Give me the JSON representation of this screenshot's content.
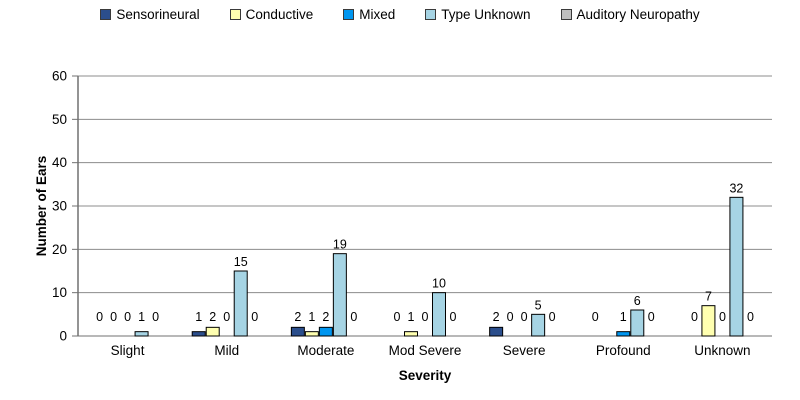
{
  "chart_data": {
    "type": "bar",
    "title": "",
    "xlabel": "Severity",
    "ylabel": "Number of Ears",
    "ylim": [
      0,
      60
    ],
    "yticks": [
      0,
      10,
      20,
      30,
      40,
      50,
      60
    ],
    "grid": "horizontal",
    "legend_position": "top-center",
    "categories": [
      "Slight",
      "Mild",
      "Moderate",
      "Mod Severe",
      "Severe",
      "Profound",
      "Unknown"
    ],
    "series": [
      {
        "name": "Sensorineural",
        "color": "#2B4E8C",
        "values": [
          0,
          1,
          2,
          0,
          2,
          0,
          0
        ]
      },
      {
        "name": "Conductive",
        "color": "#FFFFB0",
        "values": [
          0,
          2,
          1,
          1,
          0,
          0,
          7
        ]
      },
      {
        "name": "Mixed",
        "color": "#0096F0",
        "values": [
          0,
          0,
          2,
          0,
          0,
          1,
          0
        ]
      },
      {
        "name": "Type Unknown",
        "color": "#A6D4E4",
        "values": [
          1,
          15,
          19,
          10,
          5,
          6,
          32
        ]
      },
      {
        "name": "Auditory Neuropathy",
        "color": "#BFBFBF",
        "values": [
          0,
          0,
          0,
          0,
          0,
          0,
          0
        ]
      }
    ],
    "value_labels_shown": true,
    "hidden_value_labels": [
      {
        "category_index": 5,
        "series_index": 1
      }
    ],
    "colors": {
      "bar_border": "#000000",
      "gridline": "#8C8C8C",
      "axis": "#707070",
      "text": "#000000",
      "background": "#FFFFFF"
    }
  }
}
